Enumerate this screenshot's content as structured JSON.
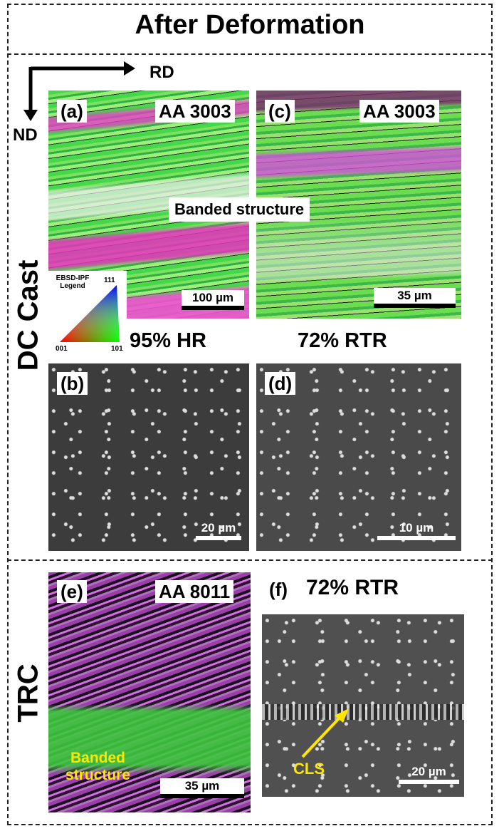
{
  "header": {
    "title": "After Deformation"
  },
  "axes": {
    "rd": "RD",
    "nd": "ND"
  },
  "sections": [
    {
      "label": "DC Cast"
    },
    {
      "label": "TRC"
    }
  ],
  "panels": {
    "a": {
      "tag": "(a)",
      "alloy": "AA 3003",
      "scale": "100 µm"
    },
    "c": {
      "tag": "(c)",
      "alloy": "AA 3003",
      "scale": "35 µm"
    },
    "b": {
      "tag": "(b)",
      "scale": "20 µm"
    },
    "d": {
      "tag": "(d)",
      "scale": "10 µm"
    },
    "e": {
      "tag": "(e)",
      "alloy": "AA 8011",
      "scale": "35 µm",
      "annotation": [
        "Banded",
        "structure"
      ]
    },
    "f": {
      "tag": "(f)",
      "condition": "72% RTR",
      "annotation": "CLS",
      "scale": "20 µm"
    }
  },
  "banded": "Banded structure",
  "conditions": [
    "95% HR",
    "72% RTR"
  ],
  "legend": {
    "title": [
      "EBSD-IPF",
      "Legend"
    ],
    "corners": [
      "111",
      "001",
      "101"
    ]
  }
}
